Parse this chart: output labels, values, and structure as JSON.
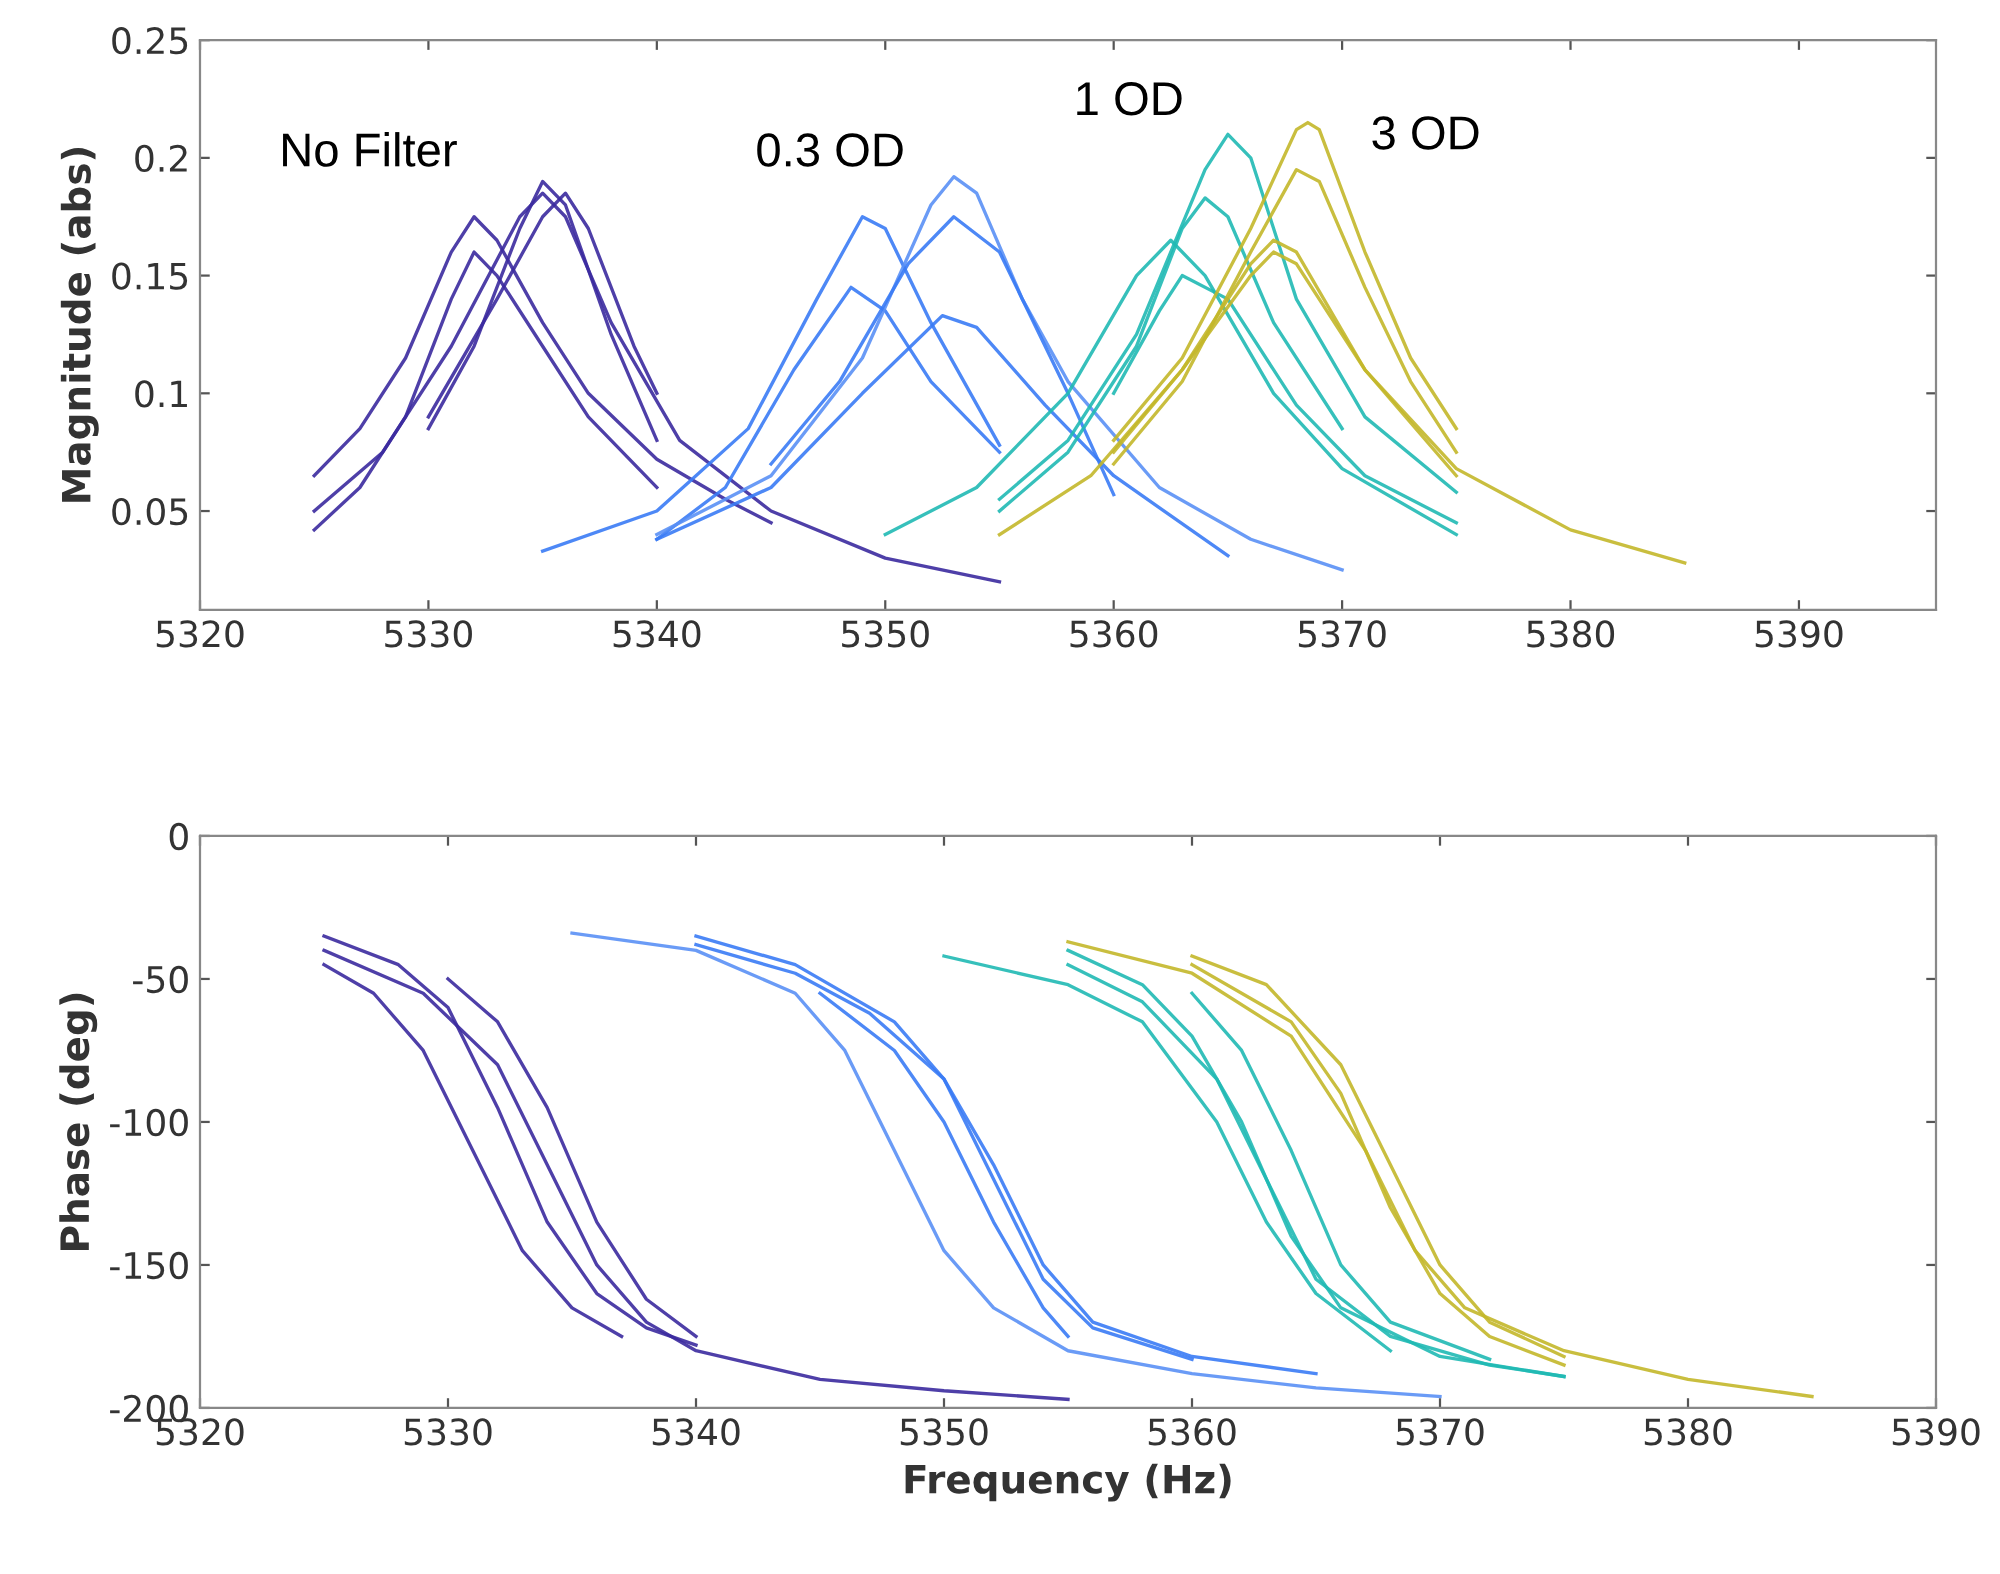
{
  "chart_data": [
    {
      "type": "line",
      "ylabel": "Magnitude (abs)",
      "xlim": [
        5320,
        5396
      ],
      "ylim": [
        0.008,
        0.25
      ],
      "xticks": [
        5320,
        5330,
        5340,
        5350,
        5360,
        5370,
        5380,
        5390
      ],
      "yticks": [
        0.05,
        0.1,
        0.15,
        0.2,
        0.25
      ],
      "annotations": [
        "No Filter",
        "0.3 OD",
        "1 OD",
        "3 OD"
      ],
      "series": [
        {
          "color": "#3b2a9e",
          "x": [
            5325,
            5327,
            5329,
            5331,
            5332,
            5333,
            5335,
            5337,
            5340,
            5343,
            5345
          ],
          "values": [
            0.065,
            0.085,
            0.115,
            0.16,
            0.175,
            0.165,
            0.13,
            0.1,
            0.072,
            0.055,
            0.045
          ]
        },
        {
          "color": "#3b2a9e",
          "x": [
            5325,
            5327,
            5329,
            5331,
            5332,
            5333,
            5335,
            5337,
            5340
          ],
          "values": [
            0.042,
            0.06,
            0.09,
            0.14,
            0.16,
            0.15,
            0.12,
            0.09,
            0.06
          ]
        },
        {
          "color": "#3b2a9e",
          "x": [
            5330,
            5332,
            5334,
            5335,
            5336,
            5338,
            5340
          ],
          "values": [
            0.085,
            0.12,
            0.17,
            0.19,
            0.18,
            0.125,
            0.08
          ]
        },
        {
          "color": "#3b2a9e",
          "x": [
            5325,
            5328,
            5331,
            5334,
            5335,
            5336,
            5338,
            5341,
            5345,
            5350,
            5355
          ],
          "values": [
            0.05,
            0.075,
            0.12,
            0.175,
            0.185,
            0.175,
            0.13,
            0.08,
            0.05,
            0.03,
            0.02
          ]
        },
        {
          "color": "#3b2a9e",
          "x": [
            5330,
            5333,
            5335,
            5336,
            5337,
            5339,
            5340
          ],
          "values": [
            0.09,
            0.14,
            0.175,
            0.185,
            0.17,
            0.12,
            0.1
          ]
        },
        {
          "color": "#3a7bf5",
          "x": [
            5335,
            5340,
            5344,
            5347,
            5349,
            5350,
            5352,
            5355
          ],
          "values": [
            0.033,
            0.05,
            0.085,
            0.14,
            0.175,
            0.17,
            0.13,
            0.078
          ]
        },
        {
          "color": "#3a7bf5",
          "x": [
            5340,
            5343,
            5346,
            5348.5,
            5350,
            5352,
            5355
          ],
          "values": [
            0.038,
            0.06,
            0.11,
            0.145,
            0.135,
            0.105,
            0.075
          ]
        },
        {
          "color": "#5a90f5",
          "x": [
            5340,
            5345,
            5349,
            5352,
            5353,
            5354,
            5356,
            5358,
            5362,
            5366,
            5370
          ],
          "values": [
            0.04,
            0.065,
            0.115,
            0.18,
            0.192,
            0.185,
            0.14,
            0.105,
            0.06,
            0.038,
            0.025
          ]
        },
        {
          "color": "#3a7bf5",
          "x": [
            5340,
            5345,
            5349,
            5352.5,
            5354,
            5357,
            5360,
            5365
          ],
          "values": [
            0.038,
            0.06,
            0.1,
            0.133,
            0.128,
            0.095,
            0.065,
            0.031
          ]
        },
        {
          "color": "#3a7bf5",
          "x": [
            5345,
            5348,
            5351,
            5353,
            5355,
            5358,
            5360
          ],
          "values": [
            0.07,
            0.105,
            0.155,
            0.175,
            0.16,
            0.1,
            0.057
          ]
        },
        {
          "color": "#20b9b4",
          "x": [
            5350,
            5354,
            5358,
            5361,
            5362.5,
            5364,
            5367,
            5370,
            5375
          ],
          "values": [
            0.04,
            0.06,
            0.1,
            0.15,
            0.165,
            0.15,
            0.1,
            0.068,
            0.04
          ]
        },
        {
          "color": "#20b9b4",
          "x": [
            5355,
            5358,
            5361,
            5364,
            5365,
            5366,
            5368,
            5371,
            5375
          ],
          "values": [
            0.055,
            0.08,
            0.125,
            0.195,
            0.21,
            0.2,
            0.14,
            0.09,
            0.058
          ]
        },
        {
          "color": "#20b9b4",
          "x": [
            5355,
            5358,
            5361,
            5363,
            5364,
            5365,
            5367,
            5370
          ],
          "values": [
            0.05,
            0.075,
            0.12,
            0.17,
            0.183,
            0.175,
            0.13,
            0.085
          ]
        },
        {
          "color": "#20b9b4",
          "x": [
            5360,
            5362,
            5363,
            5365,
            5368,
            5371,
            5375
          ],
          "values": [
            0.1,
            0.135,
            0.15,
            0.14,
            0.095,
            0.065,
            0.045
          ]
        },
        {
          "color": "#c3b72a",
          "x": [
            5355,
            5359,
            5363,
            5366,
            5367,
            5368,
            5371,
            5375,
            5380,
            5385
          ],
          "values": [
            0.04,
            0.065,
            0.11,
            0.155,
            0.165,
            0.16,
            0.11,
            0.068,
            0.042,
            0.028
          ]
        },
        {
          "color": "#c3b72a",
          "x": [
            5360,
            5363,
            5366,
            5368,
            5368.5,
            5369,
            5371,
            5373,
            5375
          ],
          "values": [
            0.08,
            0.115,
            0.17,
            0.212,
            0.215,
            0.212,
            0.16,
            0.115,
            0.085
          ]
        },
        {
          "color": "#c3b72a",
          "x": [
            5360,
            5363,
            5366,
            5368,
            5369,
            5371,
            5373,
            5375
          ],
          "values": [
            0.07,
            0.105,
            0.16,
            0.195,
            0.19,
            0.145,
            0.105,
            0.075
          ]
        },
        {
          "color": "#c3b72a",
          "x": [
            5360,
            5363,
            5366,
            5367,
            5368,
            5371,
            5375
          ],
          "values": [
            0.075,
            0.11,
            0.15,
            0.16,
            0.155,
            0.11,
            0.065
          ]
        }
      ]
    },
    {
      "type": "line",
      "xlabel": "Frequency (Hz)",
      "ylabel": "Phase (deg)",
      "xlim": [
        5320,
        5390
      ],
      "ylim": [
        -200,
        0
      ],
      "xticks": [
        5320,
        5330,
        5340,
        5350,
        5360,
        5370,
        5380,
        5390
      ],
      "yticks": [
        -200,
        -150,
        -100,
        -50,
        0
      ],
      "series": [
        {
          "color": "#3b2a9e",
          "x": [
            5325,
            5328,
            5330,
            5332,
            5334,
            5336,
            5338,
            5340
          ],
          "values": [
            -35,
            -45,
            -60,
            -95,
            -135,
            -160,
            -172,
            -178
          ]
        },
        {
          "color": "#3b2a9e",
          "x": [
            5325,
            5327,
            5329,
            5331,
            5333,
            5335,
            5337
          ],
          "values": [
            -45,
            -55,
            -75,
            -110,
            -145,
            -165,
            -175
          ]
        },
        {
          "color": "#3b2a9e",
          "x": [
            5325,
            5329,
            5332,
            5334,
            5336,
            5338,
            5340,
            5345,
            5350,
            5355
          ],
          "values": [
            -40,
            -55,
            -80,
            -115,
            -150,
            -170,
            -180,
            -190,
            -194,
            -197
          ]
        },
        {
          "color": "#3b2a9e",
          "x": [
            5330,
            5332,
            5334,
            5336,
            5338,
            5340
          ],
          "values": [
            -50,
            -65,
            -95,
            -135,
            -162,
            -175
          ]
        },
        {
          "color": "#5a90f5",
          "x": [
            5335,
            5340,
            5344,
            5346,
            5348,
            5350,
            5352,
            5355,
            5360,
            5365,
            5370
          ],
          "values": [
            -34,
            -40,
            -55,
            -75,
            -110,
            -145,
            -165,
            -180,
            -188,
            -193,
            -196
          ]
        },
        {
          "color": "#3a7bf5",
          "x": [
            5340,
            5344,
            5348,
            5350,
            5352,
            5354,
            5356,
            5360,
            5365
          ],
          "values": [
            -35,
            -45,
            -65,
            -85,
            -115,
            -150,
            -170,
            -182,
            -188
          ]
        },
        {
          "color": "#3a7bf5",
          "x": [
            5340,
            5344,
            5347,
            5350,
            5352,
            5354,
            5356,
            5360
          ],
          "values": [
            -38,
            -48,
            -62,
            -85,
            -120,
            -155,
            -172,
            -183
          ]
        },
        {
          "color": "#3a7bf5",
          "x": [
            5345,
            5348,
            5350,
            5352,
            5354,
            5355
          ],
          "values": [
            -55,
            -75,
            -100,
            -135,
            -165,
            -175
          ]
        },
        {
          "color": "#20b9b4",
          "x": [
            5350,
            5355,
            5358,
            5361,
            5363,
            5365,
            5368
          ],
          "values": [
            -42,
            -52,
            -65,
            -100,
            -135,
            -160,
            -180
          ]
        },
        {
          "color": "#20b9b4",
          "x": [
            5355,
            5358,
            5360,
            5362,
            5364,
            5366,
            5370,
            5375
          ],
          "values": [
            -40,
            -52,
            -70,
            -100,
            -140,
            -165,
            -182,
            -189
          ]
        },
        {
          "color": "#20b9b4",
          "x": [
            5355,
            5358,
            5361,
            5363,
            5365,
            5368,
            5372,
            5375
          ],
          "values": [
            -45,
            -58,
            -85,
            -120,
            -155,
            -175,
            -185,
            -189
          ]
        },
        {
          "color": "#20b9b4",
          "x": [
            5360,
            5362,
            5364,
            5366,
            5368,
            5372
          ],
          "values": [
            -55,
            -75,
            -110,
            -150,
            -170,
            -183
          ]
        },
        {
          "color": "#c3b72a",
          "x": [
            5355,
            5360,
            5364,
            5367,
            5369,
            5371,
            5375,
            5380,
            5385
          ],
          "values": [
            -37,
            -48,
            -70,
            -110,
            -145,
            -165,
            -180,
            -190,
            -196
          ]
        },
        {
          "color": "#c3b72a",
          "x": [
            5360,
            5363,
            5366,
            5368,
            5370,
            5372,
            5375
          ],
          "values": [
            -42,
            -52,
            -80,
            -115,
            -150,
            -170,
            -182
          ]
        },
        {
          "color": "#c3b72a",
          "x": [
            5360,
            5364,
            5366,
            5368,
            5370,
            5372,
            5375
          ],
          "values": [
            -45,
            -65,
            -90,
            -130,
            -160,
            -175,
            -185
          ]
        }
      ]
    }
  ]
}
